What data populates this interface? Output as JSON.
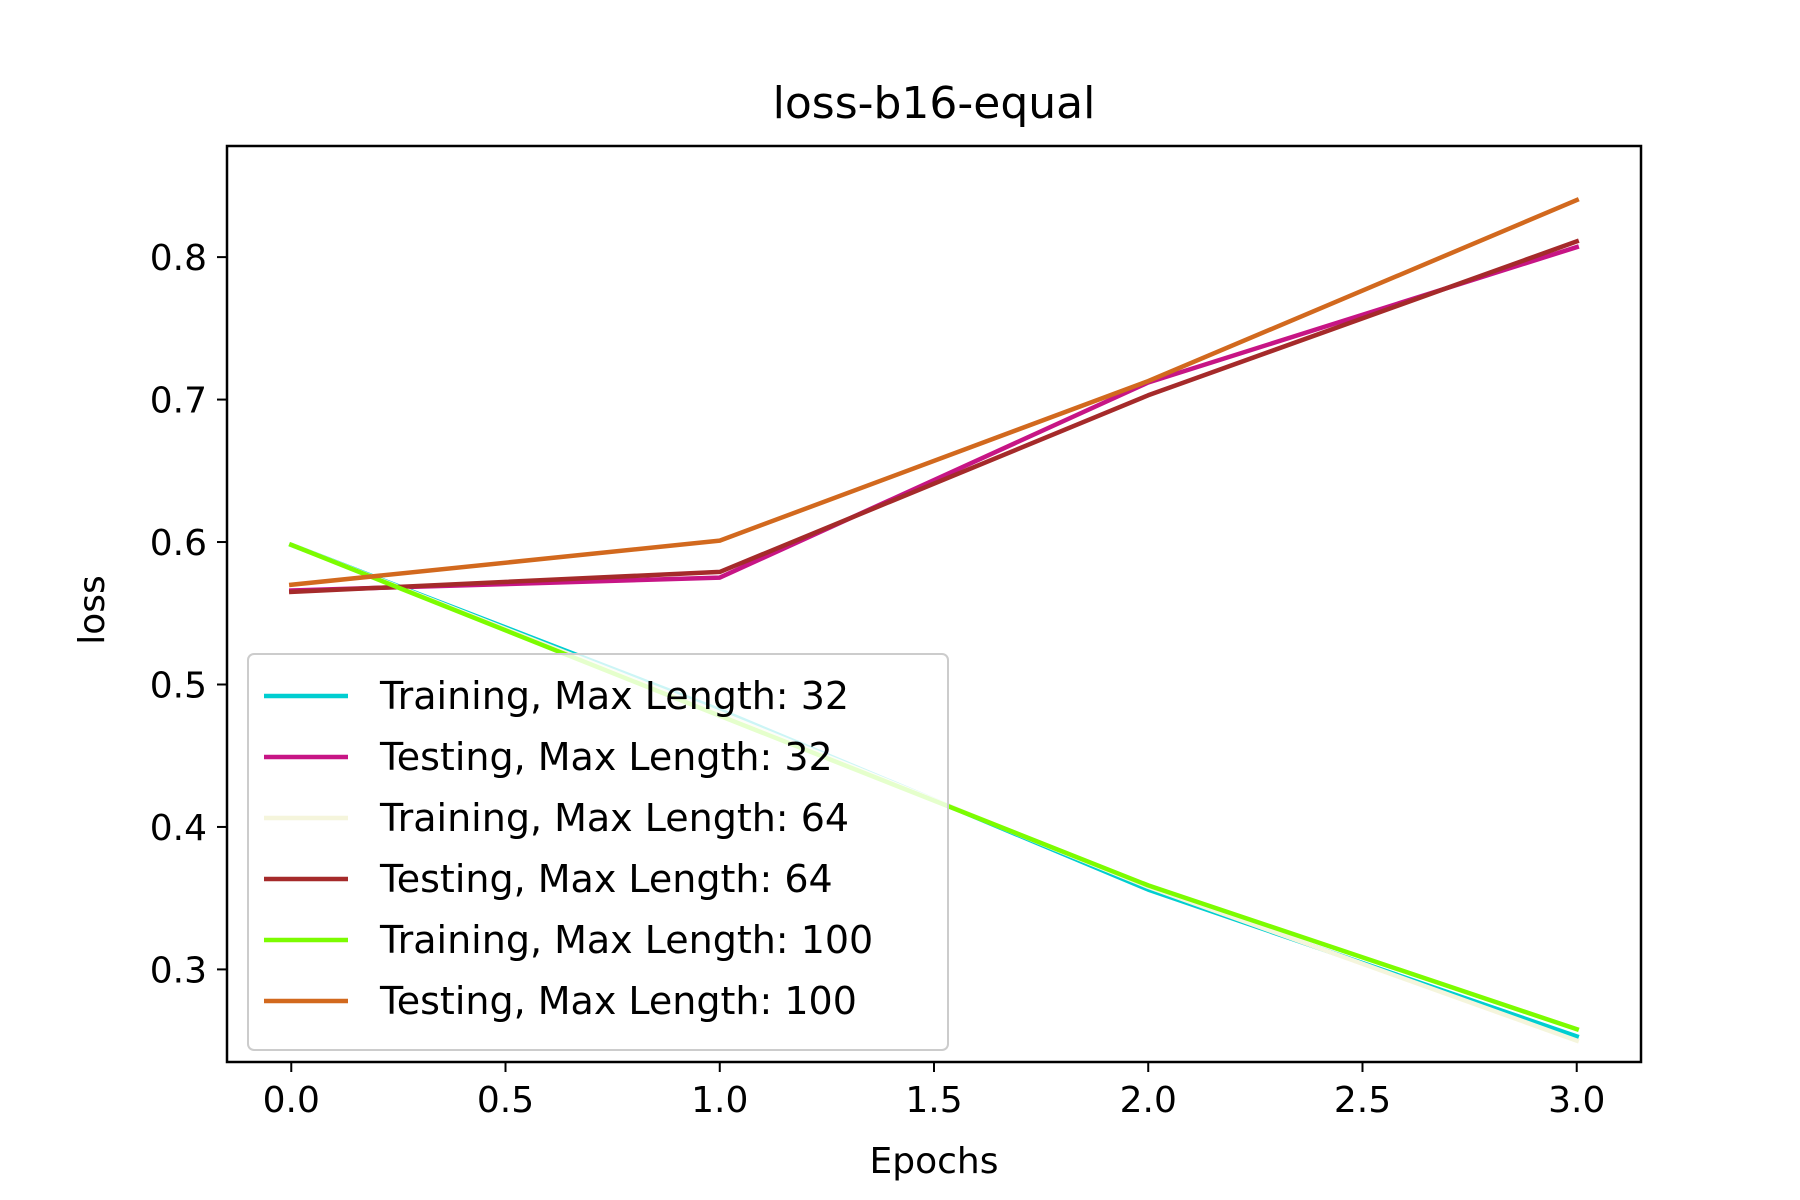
{
  "chart_data": {
    "type": "line",
    "title": "loss-b16-equal",
    "xlabel": "Epochs",
    "ylabel": "loss",
    "xlim": [
      -0.15,
      3.15
    ],
    "ylim": [
      0.235,
      0.878
    ],
    "xticks": [
      0.0,
      0.5,
      1.0,
      1.5,
      2.0,
      2.5,
      3.0
    ],
    "xtick_labels": [
      "0.0",
      "0.5",
      "1.0",
      "1.5",
      "2.0",
      "2.5",
      "3.0"
    ],
    "yticks": [
      0.3,
      0.4,
      0.5,
      0.6,
      0.7,
      0.8
    ],
    "ytick_labels": [
      "0.3",
      "0.4",
      "0.5",
      "0.6",
      "0.7",
      "0.8"
    ],
    "grid": false,
    "legend_position": "lower-left",
    "x": [
      0,
      1,
      2,
      3
    ],
    "series": [
      {
        "name": "Training, Max Length: 32",
        "color": "#00ced1",
        "values": [
          0.598,
          0.482,
          0.356,
          0.253
        ]
      },
      {
        "name": "Testing, Max Length: 32",
        "color": "#c71585",
        "values": [
          0.566,
          0.575,
          0.712,
          0.807
        ]
      },
      {
        "name": "Training, Max Length: 64",
        "color": "#f5f5dc",
        "values": [
          0.598,
          0.48,
          0.358,
          0.25
        ]
      },
      {
        "name": "Testing, Max Length: 64",
        "color": "#a52a2a",
        "values": [
          0.565,
          0.579,
          0.703,
          0.811
        ]
      },
      {
        "name": "Training, Max Length: 100",
        "color": "#7cfc00",
        "values": [
          0.598,
          0.478,
          0.359,
          0.258
        ]
      },
      {
        "name": "Testing, Max Length: 100",
        "color": "#d2691e",
        "values": [
          0.57,
          0.601,
          0.713,
          0.84
        ]
      }
    ]
  }
}
